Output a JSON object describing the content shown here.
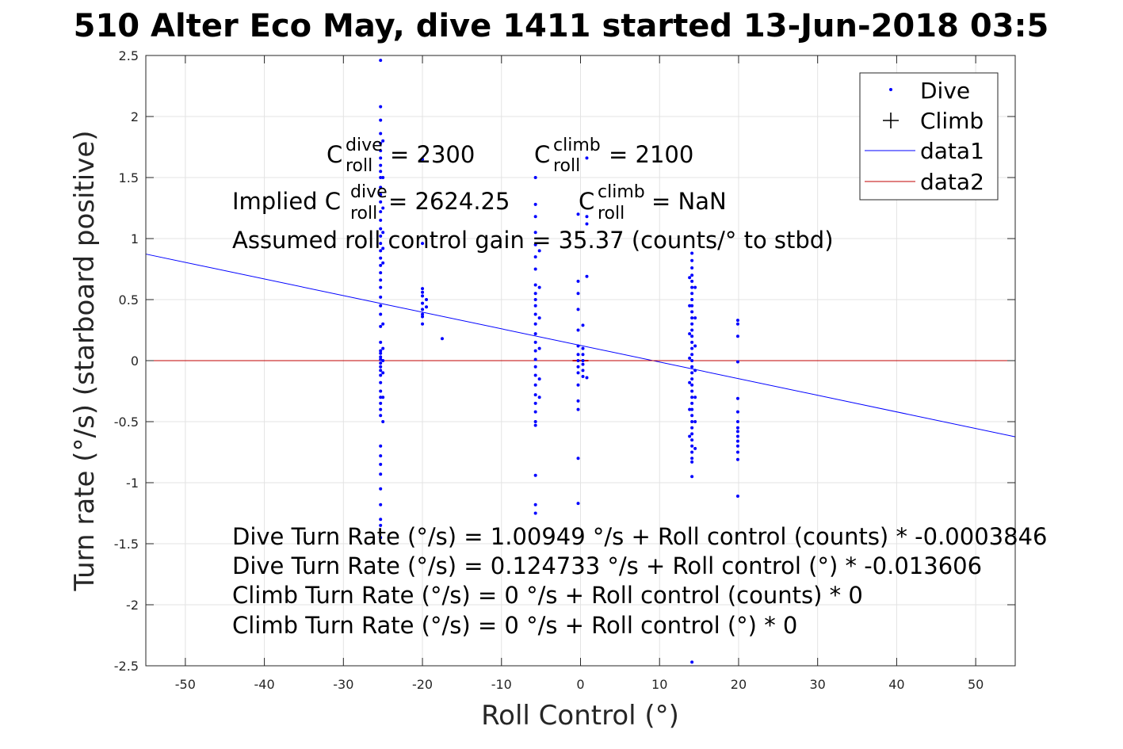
{
  "chart_data": {
    "type": "scatter",
    "title": "510 Alter Eco May, dive 1411 started 13-Jun-2018 03:5",
    "xlabel": "Roll Control (°)",
    "ylabel": "Turn rate (°/s) (starboard positive)",
    "xlim": [
      -55,
      55
    ],
    "ylim": [
      -2.5,
      2.5
    ],
    "xticks": [
      -50,
      -40,
      -30,
      -20,
      -10,
      0,
      10,
      20,
      30,
      40,
      50
    ],
    "yticks": [
      -2.5,
      -2,
      -1.5,
      -1,
      -0.5,
      0,
      0.5,
      1,
      1.5,
      2,
      2.5
    ],
    "xtick_labels": [
      "-50",
      "-40",
      "-30",
      "-20",
      "-10",
      "0",
      "10",
      "20",
      "30",
      "40",
      "50"
    ],
    "ytick_labels": [
      "-2.5",
      "-2",
      "-1.5",
      "-1",
      "-0.5",
      "0",
      "0.5",
      "1",
      "1.5",
      "2",
      "2.5"
    ],
    "grid": true,
    "legend_position": "top-right",
    "legend": [
      {
        "label": "Dive",
        "marker": "dot",
        "color": "#0000ff"
      },
      {
        "label": "Climb",
        "marker": "plus",
        "color": "#000000"
      },
      {
        "label": "data1",
        "marker": "line",
        "color": "#0000ff"
      },
      {
        "label": "data2",
        "marker": "line",
        "color": "#c00000"
      }
    ],
    "series": [
      {
        "name": "Dive",
        "color": "#0000ff",
        "groups": [
          {
            "x": -25.3,
            "y": [
              2.46,
              2.08,
              1.97,
              1.86,
              1.78,
              1.72,
              1.66,
              1.6,
              1.55,
              1.5,
              1.42,
              1.36,
              1.3,
              1.22,
              1.15,
              1.08,
              1.02,
              0.96,
              0.9,
              0.84,
              0.78,
              0.72,
              0.66,
              0.6,
              0.52,
              0.45,
              0.38,
              0.28,
              0.15,
              0.08,
              0.06,
              0.03,
              0.01,
              -0.02,
              -0.05,
              -0.08,
              -0.12,
              -0.18,
              -0.25,
              -0.3,
              -0.35,
              -0.4,
              -0.45,
              -0.7,
              -0.78,
              -0.85,
              -0.93,
              -1.05,
              -1.18,
              -1.3,
              -1.35,
              -1.45
            ]
          },
          {
            "x": -25.0,
            "y": [
              1.8,
              1.5,
              1.25,
              1.05,
              0.92,
              0.8,
              0.3,
              0.1,
              0.0,
              -0.1,
              -0.3,
              -0.5
            ]
          },
          {
            "x": -20.0,
            "y": [
              1.65,
              0.96,
              0.59,
              0.56,
              0.53,
              0.47,
              0.42,
              0.38,
              0.36,
              0.3
            ]
          },
          {
            "x": -19.5,
            "y": [
              0.5,
              0.44
            ]
          },
          {
            "x": -17.5,
            "y": [
              0.18
            ]
          },
          {
            "x": -5.7,
            "y": [
              1.5,
              1.28,
              1.18,
              1.05,
              0.95,
              0.85,
              0.75,
              0.62,
              0.55,
              0.5,
              0.45,
              0.38,
              0.3,
              0.22,
              0.15,
              0.08,
              0.01,
              -0.05,
              -0.12,
              -0.2,
              -0.28,
              -0.35,
              -0.42,
              -0.5,
              -0.53,
              -0.94,
              -1.18,
              -1.25
            ]
          },
          {
            "x": -5.2,
            "y": [
              0.9,
              0.6,
              0.35,
              0.1,
              -0.15,
              -0.3
            ]
          },
          {
            "x": -0.3,
            "y": [
              1.2,
              0.65,
              0.55,
              0.42,
              0.25,
              0.12,
              0.05,
              0.0,
              -0.05,
              -0.1,
              -0.2,
              -0.33,
              -0.4,
              -0.8,
              -1.17
            ]
          },
          {
            "x": 0.3,
            "y": [
              0.29,
              0.1,
              0.05,
              0.0,
              -0.03,
              -0.08,
              -0.13
            ]
          },
          {
            "x": 0.8,
            "y": [
              1.66,
              1.18,
              1.12,
              0.69,
              -0.14
            ]
          },
          {
            "x": 14.1,
            "y": [
              0.88,
              0.82,
              0.76,
              0.7,
              0.65,
              0.6,
              0.55,
              0.5,
              0.45,
              0.4,
              0.35,
              0.3,
              0.25,
              0.2,
              0.15,
              0.1,
              0.05,
              0.0,
              -0.05,
              -0.1,
              -0.15,
              -0.2,
              -0.25,
              -0.3,
              -0.35,
              -0.4,
              -0.45,
              -0.5,
              -0.55,
              -0.6,
              -0.65,
              -0.7,
              -0.75,
              -0.8,
              -0.83,
              -0.95,
              -2.47
            ]
          },
          {
            "x": 13.8,
            "y": [
              0.68,
              0.45,
              0.22,
              0.02,
              -0.18,
              -0.4,
              -0.62
            ]
          },
          {
            "x": 14.5,
            "y": [
              0.6,
              0.35,
              0.12,
              -0.08,
              -0.3,
              -0.5,
              -0.72
            ]
          },
          {
            "x": 19.9,
            "y": [
              0.33,
              0.3,
              0.2,
              -0.01,
              -0.31,
              -0.42,
              -0.5,
              -0.55,
              -0.58,
              -0.62,
              -0.66,
              -0.7,
              -0.75,
              -0.81,
              -1.11
            ]
          }
        ]
      },
      {
        "name": "Climb",
        "color": "#000000",
        "points": []
      },
      {
        "name": "data1",
        "color": "#0000ff",
        "type": "line",
        "x": [
          -55,
          55
        ],
        "y": [
          0.873,
          -0.624
        ]
      },
      {
        "name": "data2",
        "color": "#c00000",
        "type": "line",
        "x": [
          -55,
          55
        ],
        "y": [
          0,
          0
        ]
      }
    ],
    "annotations": {
      "c_dive_base": "C",
      "c_dive_sup": "dive",
      "c_dive_sub": "roll",
      "c_dive_value": " = 2300",
      "c_climb_base": "C",
      "c_climb_sup": "climb",
      "c_climb_sub": "roll",
      "c_climb_value": " = 2100",
      "implied_prefix": "Implied C",
      "implied_sup": "dive",
      "implied_sub": "roll",
      "implied_value": " = 2624.25",
      "implied_climb_base": "C",
      "implied_climb_sup": "climb",
      "implied_climb_sub": "roll",
      "implied_climb_value": " = NaN",
      "gain": "Assumed roll control gain = 35.37 (counts/° to stbd)",
      "eq1": "Dive Turn Rate (°/s) = 1.00949 °/s + Roll control (counts) * -0.0003846",
      "eq2": "Dive Turn Rate (°/s) = 0.124733 °/s + Roll control (°) * -0.013606",
      "eq3": "Climb Turn Rate (°/s) = 0 °/s + Roll control (counts) * 0",
      "eq4": "Climb Turn Rate (°/s) = 0 °/s + Roll control (°) * 0"
    }
  }
}
